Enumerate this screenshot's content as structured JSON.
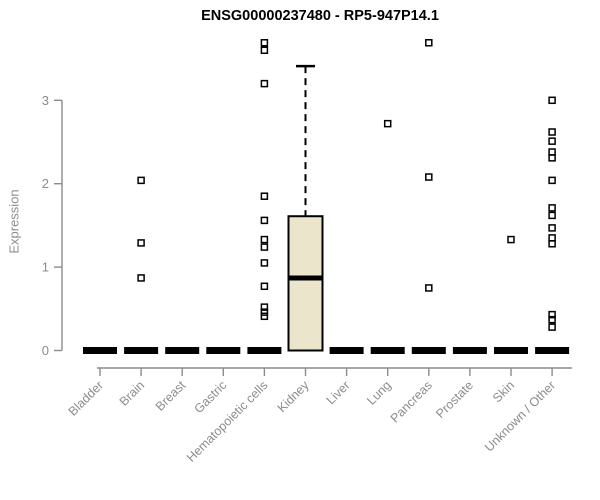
{
  "chart_data": {
    "type": "boxplot",
    "title": "ENSG00000237480 - RP5-947P14.1",
    "ylabel": "Expression",
    "xlabel": "",
    "ylim": [
      0,
      3.75
    ],
    "yticks": [
      0,
      1,
      2,
      3
    ],
    "grid": false,
    "legend": null,
    "colors": {
      "box_fill": "#EBE5CB",
      "box_stroke": "#000000",
      "axis_line": "#8c8c8c",
      "tick_label": "#8c8c8c",
      "title_text": "#000000"
    },
    "categories": [
      "Bladder",
      "Brain",
      "Breast",
      "Gastric",
      "Hematopoietic cells",
      "Kidney",
      "Liver",
      "Lung",
      "Pancreas",
      "Prostate",
      "Skin",
      "Unknown / Other"
    ],
    "series": [
      {
        "category": "Bladder",
        "q1": 0,
        "median": 0,
        "q3": 0,
        "whisker_low": 0,
        "whisker_high": 0,
        "outliers": []
      },
      {
        "category": "Brain",
        "q1": 0,
        "median": 0,
        "q3": 0,
        "whisker_low": 0,
        "whisker_high": 0,
        "outliers": [
          2.04,
          1.29,
          0.87
        ]
      },
      {
        "category": "Breast",
        "q1": 0,
        "median": 0,
        "q3": 0,
        "whisker_low": 0,
        "whisker_high": 0,
        "outliers": []
      },
      {
        "category": "Gastric",
        "q1": 0,
        "median": 0,
        "q3": 0,
        "whisker_low": 0,
        "whisker_high": 0,
        "outliers": []
      },
      {
        "category": "Hematopoietic cells",
        "q1": 0,
        "median": 0,
        "q3": 0,
        "whisker_low": 0,
        "whisker_high": 0,
        "outliers": [
          3.69,
          3.6,
          3.2,
          1.85,
          1.56,
          1.33,
          1.24,
          1.05,
          0.77,
          0.52,
          0.46,
          0.41
        ]
      },
      {
        "category": "Kidney",
        "q1": 0,
        "median": 0.87,
        "q3": 1.61,
        "whisker_low": 0,
        "whisker_high": 3.41,
        "outliers": []
      },
      {
        "category": "Liver",
        "q1": 0,
        "median": 0,
        "q3": 0,
        "whisker_low": 0,
        "whisker_high": 0,
        "outliers": []
      },
      {
        "category": "Lung",
        "q1": 0,
        "median": 0,
        "q3": 0,
        "whisker_low": 0,
        "whisker_high": 0,
        "outliers": [
          2.72
        ]
      },
      {
        "category": "Pancreas",
        "q1": 0,
        "median": 0,
        "q3": 0,
        "whisker_low": 0,
        "whisker_high": 0,
        "outliers": [
          3.69,
          2.08,
          0.75
        ]
      },
      {
        "category": "Prostate",
        "q1": 0,
        "median": 0,
        "q3": 0,
        "whisker_low": 0,
        "whisker_high": 0,
        "outliers": []
      },
      {
        "category": "Skin",
        "q1": 0,
        "median": 0,
        "q3": 0,
        "whisker_low": 0,
        "whisker_high": 0,
        "outliers": [
          1.33
        ]
      },
      {
        "category": "Unknown / Other",
        "q1": 0,
        "median": 0,
        "q3": 0,
        "whisker_low": 0,
        "whisker_high": 0,
        "outliers": [
          3.0,
          2.62,
          2.51,
          2.38,
          2.31,
          2.04,
          1.71,
          1.62,
          1.47,
          1.35,
          1.28,
          0.43,
          0.37,
          0.28
        ]
      }
    ]
  }
}
